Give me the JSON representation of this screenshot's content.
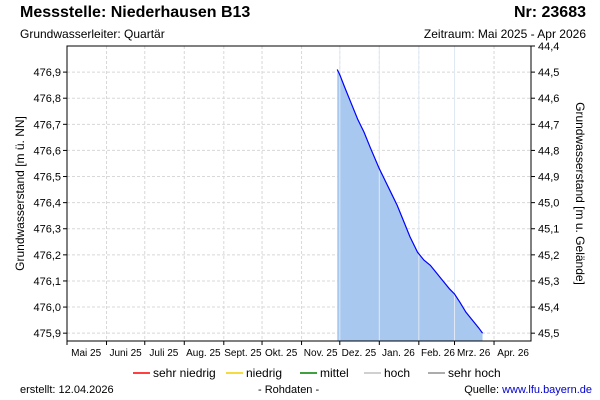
{
  "header": {
    "title": "Messstelle: Niederhausen B13",
    "number": "Nr: 23683",
    "aquifer": "Grundwasserleiter: Quartär",
    "period": "Zeitraum: Mai 2025 - Apr 2026"
  },
  "footer": {
    "created_label": "erstellt:",
    "created_date": "12.04.2026",
    "raw_label": "- Rohdaten -",
    "source_label": "Quelle:",
    "source_link": "www.lfu.bayern.de"
  },
  "chart_data": {
    "type": "area",
    "ylabel_left": "Grundwasserstand [m ü. NN]",
    "ylabel_right": "Grundwasserstand [m u. Gelände]",
    "ylim_left": [
      475.87,
      477.0
    ],
    "ylim_right": [
      44.4,
      45.53
    ],
    "yticks_left": [
      "476,9",
      "476,8",
      "476,7",
      "476,6",
      "476,5",
      "476,4",
      "476,3",
      "476,2",
      "476,1",
      "476,0",
      "475,9"
    ],
    "yticks_left_values": [
      476.9,
      476.8,
      476.7,
      476.6,
      476.5,
      476.4,
      476.3,
      476.2,
      476.1,
      476.0,
      475.9
    ],
    "yticks_right": [
      "44,4",
      "44,5",
      "44,6",
      "44,7",
      "44,8",
      "44,9",
      "45,0",
      "45,1",
      "45,2",
      "45,3",
      "45,4",
      "45,5"
    ],
    "yticks_right_values": [
      44.4,
      44.5,
      44.6,
      44.7,
      44.8,
      44.9,
      45.0,
      45.1,
      45.2,
      45.3,
      45.4,
      45.5
    ],
    "xlim": [
      "2025-05-01",
      "2026-04-30"
    ],
    "xticks": [
      {
        "date": "2025-05-01",
        "label": "Mai 25"
      },
      {
        "date": "2025-06-01",
        "label": "Juni 25"
      },
      {
        "date": "2025-07-01",
        "label": "Juli 25"
      },
      {
        "date": "2025-08-01",
        "label": "Aug. 25"
      },
      {
        "date": "2025-09-01",
        "label": "Sept. 25"
      },
      {
        "date": "2025-10-01",
        "label": "Okt. 25"
      },
      {
        "date": "2025-11-01",
        "label": "Nov. 25"
      },
      {
        "date": "2025-12-01",
        "label": "Dez. 25"
      },
      {
        "date": "2026-01-01",
        "label": "Jan. 26"
      },
      {
        "date": "2026-02-01",
        "label": "Feb. 26"
      },
      {
        "date": "2026-03-01",
        "label": "Mrz. 26"
      },
      {
        "date": "2026-04-01",
        "label": "Apr. 26"
      }
    ],
    "grid": true,
    "fill_color": "#a9c8f0",
    "line_color": "#0000ff",
    "series": [
      {
        "points": [
          {
            "x": "2025-11-29",
            "y": 476.91
          },
          {
            "x": "2025-12-01",
            "y": 476.89
          },
          {
            "x": "2025-12-05",
            "y": 476.84
          },
          {
            "x": "2025-12-10",
            "y": 476.78
          },
          {
            "x": "2025-12-15",
            "y": 476.72
          },
          {
            "x": "2025-12-20",
            "y": 476.67
          },
          {
            "x": "2025-12-25",
            "y": 476.61
          },
          {
            "x": "2026-01-01",
            "y": 476.53
          },
          {
            "x": "2026-01-05",
            "y": 476.49
          },
          {
            "x": "2026-01-10",
            "y": 476.44
          },
          {
            "x": "2026-01-15",
            "y": 476.39
          },
          {
            "x": "2026-01-20",
            "y": 476.33
          },
          {
            "x": "2026-01-25",
            "y": 476.27
          },
          {
            "x": "2026-01-31",
            "y": 476.21
          },
          {
            "x": "2026-02-05",
            "y": 476.18
          },
          {
            "x": "2026-02-10",
            "y": 476.16
          },
          {
            "x": "2026-02-15",
            "y": 476.13
          },
          {
            "x": "2026-02-20",
            "y": 476.1
          },
          {
            "x": "2026-02-25",
            "y": 476.07
          },
          {
            "x": "2026-03-01",
            "y": 476.05
          },
          {
            "x": "2026-03-05",
            "y": 476.02
          },
          {
            "x": "2026-03-10",
            "y": 475.98
          },
          {
            "x": "2026-03-15",
            "y": 475.95
          },
          {
            "x": "2026-03-20",
            "y": 475.92
          },
          {
            "x": "2026-03-23",
            "y": 475.9
          }
        ]
      }
    ],
    "legend_position": "bottom",
    "legend": [
      {
        "label": "sehr niedrig",
        "color": "#ff0000"
      },
      {
        "label": "niedrig",
        "color": "#f0d000"
      },
      {
        "label": "mittel",
        "color": "#008000"
      },
      {
        "label": "hoch",
        "color": "#c0c0c0"
      },
      {
        "label": "sehr hoch",
        "color": "#909090"
      }
    ]
  }
}
